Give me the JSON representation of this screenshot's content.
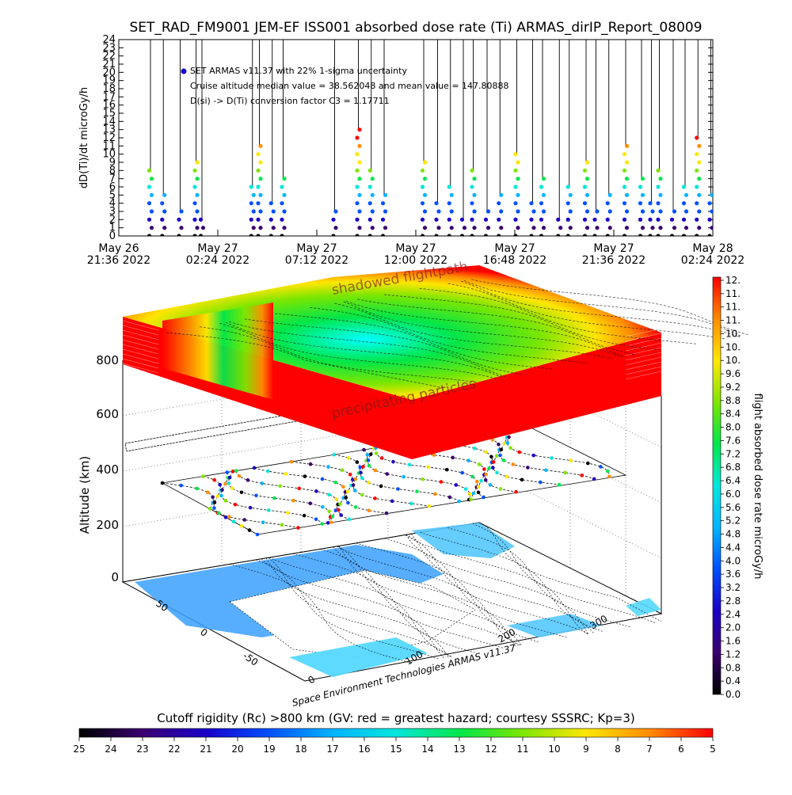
{
  "title": "SET_RAD_FM9001  JEM-EF ISS001 absorbed dose rate (Ti) ARMAS_dirIP_Report_08009",
  "top_plot": {
    "ylabel": "dD(Ti)/dt microGy/h",
    "annotations": [
      "SET ARMAS v11.37 with 22% 1-sigma uncertainty",
      "Cruise altitude median value = 38.562048 and mean value = 147.80888",
      "D(si) -> D(Ti) conversion factor C3 = 1.17711"
    ]
  },
  "side_colorbar": {
    "label": "flight absorbed dose rate microGy/h",
    "ticks": [
      "12.",
      "11.",
      "11.",
      "11.",
      "10.",
      "10.",
      "10.",
      "9.6",
      "9.2",
      "8.8",
      "8.4",
      "8.0",
      "7.6",
      "7.2",
      "6.8",
      "6.4",
      "6.0",
      "5.6",
      "5.2",
      "4.8",
      "4.4",
      "4.0",
      "3.6",
      "3.2",
      "2.8",
      "2.4",
      "2.0",
      "1.6",
      "1.2",
      "0.8",
      "0.4",
      "0.0"
    ]
  },
  "bottom_colorbar": {
    "title": "Cutoff rigidity (Rc) >800 km (GV: red = greatest hazard; courtesy SSSRC; Kp=3)",
    "ticks": [
      "25",
      "24",
      "23",
      "22",
      "21",
      "20",
      "19",
      "18",
      "17",
      "16",
      "15",
      "14",
      "13",
      "12",
      "11",
      "10",
      "9",
      "8",
      "7",
      "6",
      "5"
    ]
  },
  "plot3d": {
    "ylabel": "Altitude (km)",
    "z_ticks": [
      "0",
      "200",
      "400",
      "600",
      "800"
    ],
    "lat_ticks": [
      "50",
      "0",
      "-50"
    ],
    "lon_ticks": [
      "0",
      "100",
      "200",
      "300"
    ],
    "label_shadowed": "shadowed flightpath",
    "label_precip": "precipitating particles",
    "credit": "Space Environment Technologies ARMAS v11.37"
  },
  "colors": {
    "rainbow": [
      "#000000",
      "#3a0070",
      "#1a00c8",
      "#0050ff",
      "#00b4ff",
      "#00e6dc",
      "#00e64b",
      "#7ee600",
      "#ffe600",
      "#ff8c00",
      "#ff0000"
    ]
  },
  "chart_data": [
    {
      "type": "scatter",
      "title": "SET_RAD_FM9001  JEM-EF ISS001 absorbed dose rate (Ti) ARMAS_dirIP_Report_08009",
      "xlabel": "",
      "ylabel": "dD(Ti)/dt microGy/h",
      "ylim": [
        0,
        24
      ],
      "y_ticks": [
        "0",
        "1",
        "2",
        "3",
        "4",
        "5",
        "6",
        "7",
        "8",
        "9",
        "10",
        "11",
        "12",
        "13",
        "14",
        "15",
        "16",
        "17",
        "18",
        "19",
        "20",
        "21",
        "22",
        "23",
        "24"
      ],
      "x_ticks": [
        [
          "May 26",
          "21:36 2022"
        ],
        [
          "May 27",
          "02:24 2022"
        ],
        [
          "May 27",
          "07:12 2022"
        ],
        [
          "May 27",
          "12:00 2022"
        ],
        [
          "May 27",
          "16:48 2022"
        ],
        [
          "May 27",
          "21:36 2022"
        ],
        [
          "May 28",
          "02:24 2022"
        ]
      ],
      "grid": false,
      "x": [
        0.32,
        0.45,
        0.62,
        0.78,
        0.84,
        1.35,
        1.42,
        1.55,
        1.66,
        2.18,
        2.42,
        2.55,
        2.68,
        3.08,
        3.22,
        3.35,
        3.48,
        3.58,
        3.72,
        3.85,
        4.02,
        4.18,
        4.28,
        4.45,
        4.55,
        4.72,
        4.82,
        4.95,
        5.12,
        5.28,
        5.38,
        5.46,
        5.6,
        5.72,
        5.85,
        5.98,
        6.08,
        6.18,
        6.32,
        6.45
      ],
      "values": [
        8,
        5,
        3,
        9,
        2,
        6,
        11,
        4,
        7,
        3,
        13,
        8,
        5,
        9,
        4,
        6,
        2,
        8,
        3,
        5,
        10,
        4,
        7,
        2,
        6,
        9,
        3,
        5,
        11,
        7,
        4,
        8,
        3,
        6,
        12,
        5,
        8,
        4,
        9,
        6
      ]
    },
    {
      "type": "heatmap",
      "title": "",
      "xlabel": "",
      "ylabel": "Altitude (km)",
      "zlim": [
        0,
        800
      ],
      "lat_range": [
        -50,
        50
      ],
      "lon_range": [
        0,
        300
      ],
      "colorbar_label": "flight absorbed dose rate microGy/h",
      "colorbar_range": [
        0,
        12
      ],
      "cutoff_colorbar_range": [
        25,
        5
      ]
    }
  ]
}
